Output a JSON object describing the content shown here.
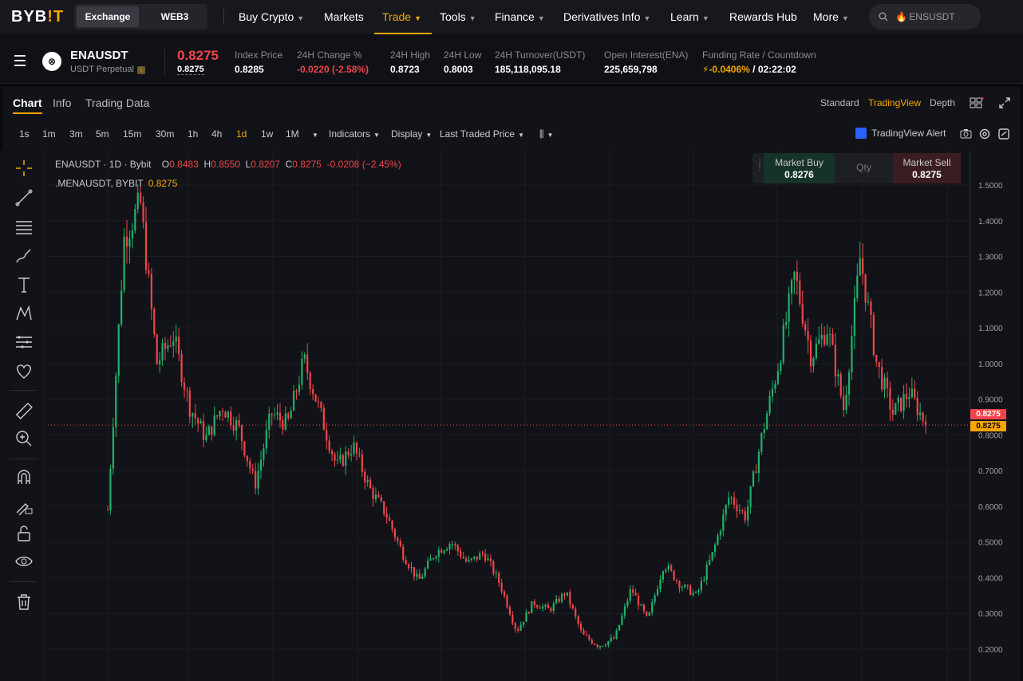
{
  "nav": {
    "logo_a": "BYB",
    "logo_b": "!T",
    "exchange": "Exchange",
    "web3": "WEB3",
    "items": [
      "Buy Crypto",
      "Markets",
      "Trade",
      "Tools",
      "Finance",
      "Derivatives Info",
      "Learn",
      "Rewards Hub",
      "More"
    ],
    "search_text": "ENSUSDT"
  },
  "ticker": {
    "symbol": "ENAUSDT",
    "contract": "USDT Perpetual",
    "last_price": "0.8275",
    "mark_price": "0.8275",
    "stats": [
      {
        "label": "Index Price",
        "value": "0.8285"
      },
      {
        "label": "24H Change %",
        "value": "-0.0220 (-2.58%)"
      },
      {
        "label": "24H High",
        "value": "0.8723"
      },
      {
        "label": "24H Low",
        "value": "0.8003"
      },
      {
        "label": "24H Turnover(USDT)",
        "value": "185,118,095.18"
      },
      {
        "label": "Open Interest(ENA)",
        "value": "225,659,798"
      },
      {
        "label": "Funding Rate / Countdown",
        "value_rate": "-0.0406%",
        "value_time": "/ 02:22:02"
      }
    ]
  },
  "panel": {
    "tabs": [
      "Chart",
      "Info",
      "Trading Data"
    ],
    "views": [
      "Standard",
      "TradingView",
      "Depth"
    ],
    "timeframes": [
      "1s",
      "1m",
      "3m",
      "5m",
      "15m",
      "30m",
      "1h",
      "4h",
      "1d",
      "1w",
      "1M"
    ],
    "indicators": "Indicators",
    "display": "Display",
    "price_type": "Last Traded Price",
    "tv_alert": "TradingView Alert"
  },
  "legend": {
    "title": "ENAUSDT · 1D · Bybit",
    "o": "0.8483",
    "h": "0.8550",
    "l": "0.8207",
    "c": "0.8275",
    "chg": "-0.0208 (−2.45%)",
    "mark_line": ".MENAUSDT, BYBIT",
    "mark_val": "0.8275"
  },
  "trade": {
    "buy_label": "Market Buy",
    "buy_price": "0.8276",
    "qty": "Qty",
    "sell_label": "Market Sell",
    "sell_price": "0.8275"
  },
  "price_tags": {
    "last": "0.8275",
    "mark": "0.8275"
  },
  "colors": {
    "up": "#20b26c",
    "down": "#ef454a",
    "accent": "#f7a600"
  },
  "chart_data": {
    "type": "candlestick",
    "y_ticks": [
      "1.5000",
      "1.4000",
      "1.3000",
      "1.2000",
      "1.1000",
      "1.0000",
      "0.9000",
      "0.8000",
      "0.7000",
      "0.6000",
      "0.5000",
      "0.4000",
      "0.3000",
      "0.2000"
    ],
    "ylim": [
      0.16,
      1.56
    ],
    "last_price": 0.8275,
    "close_path": [
      0.59,
      1.35,
      1.45,
      1.0,
      1.08,
      0.88,
      0.79,
      0.88,
      0.82,
      0.66,
      0.86,
      0.83,
      1.01,
      0.86,
      0.71,
      0.77,
      0.65,
      0.58,
      0.47,
      0.39,
      0.47,
      0.5,
      0.44,
      0.47,
      0.38,
      0.25,
      0.33,
      0.31,
      0.36,
      0.24,
      0.21,
      0.23,
      0.37,
      0.28,
      0.44,
      0.38,
      0.35,
      0.47,
      0.63,
      0.57,
      0.8,
      1.0,
      1.25,
      1.02,
      1.1,
      0.87,
      1.3,
      1.0,
      0.86,
      0.92,
      0.83
    ]
  }
}
